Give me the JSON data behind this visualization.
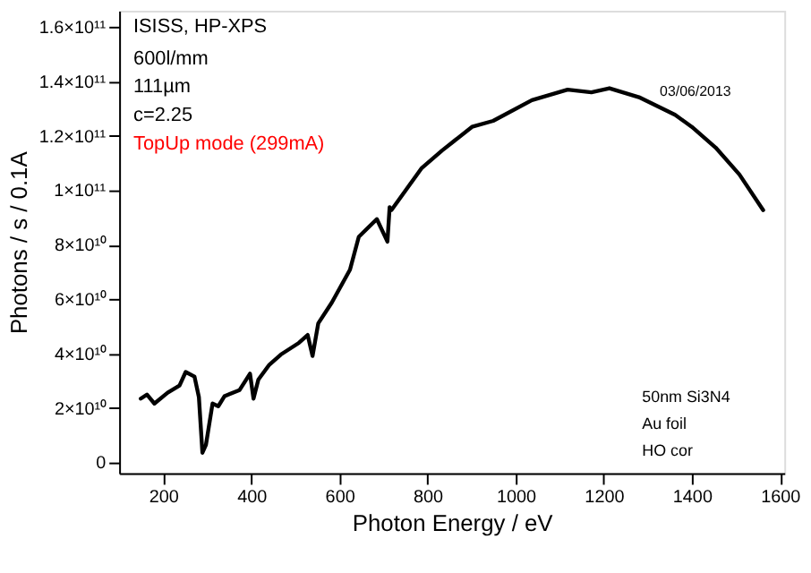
{
  "chart_data": {
    "type": "line",
    "xlabel": "Photon Energy / eV",
    "ylabel": "Photons / s / 0.1A",
    "x": [
      149,
      163,
      180,
      210,
      237,
      251,
      271,
      281,
      289,
      297,
      312,
      325,
      339,
      373,
      397,
      405,
      416,
      441,
      467,
      508,
      528,
      539,
      552,
      583,
      624,
      644,
      685,
      709,
      714,
      718,
      752,
      786,
      833,
      901,
      949,
      1037,
      1118,
      1172,
      1213,
      1280,
      1362,
      1400,
      1454,
      1508,
      1562
    ],
    "series": [
      {
        "color": "#000000",
        "values": [
          23400000000.0,
          24900000000.0,
          21600000000.0,
          25600000000.0,
          28200000000.0,
          33200000000.0,
          31500000000.0,
          24000000000.0,
          3500000000.0,
          6400000000.0,
          21600000000.0,
          20600000000.0,
          24300000000.0,
          26500000000.0,
          32600000000.0,
          23400000000.0,
          30400000000.0,
          35900000000.0,
          39600000000.0,
          43900000000.0,
          46800000000.0,
          39100000000.0,
          51100000000.0,
          58800000000.0,
          70800000000.0,
          82900000000.0,
          89400000000.0,
          81100000000.0,
          93800000000.0,
          92700000000.0,
          100300000000.0,
          108000000000.0,
          114600000000.0,
          123300000000.0,
          125500000000.0,
          133100000000.0,
          137000000000.0,
          136000000000.0,
          137500000000.0,
          134200000000.0,
          127700000000.0,
          123300000000.0,
          115700000000.0,
          105800000000.0,
          92700000000.0
        ]
      }
    ],
    "xlim": [
      100,
      1610
    ],
    "xticks": [
      200,
      400,
      600,
      800,
      1000,
      1200,
      1400,
      1600
    ],
    "ylim": [
      -4000000000.0,
      166000000000.0
    ],
    "yticks": [
      0,
      {
        "value": 20000000000.0,
        "label": "2×10¹⁰"
      },
      {
        "value": 40000000000.0,
        "label": "4×10¹⁰"
      },
      {
        "value": 60000000000.0,
        "label": "6×10¹⁰"
      },
      {
        "value": 80000000000.0,
        "label": "8×10¹⁰"
      },
      {
        "value": 100000000000.0,
        "label": "1×10¹¹"
      },
      {
        "value": 120000000000.0,
        "label": "1.2×10¹¹"
      },
      {
        "value": 140000000000.0,
        "label": "1.4×10¹¹"
      },
      {
        "value": 160000000000.0,
        "label": "1.6×10¹¹"
      }
    ],
    "annotations": [
      "ISISS, HP-XPS",
      "600l/mm",
      "111µm",
      "c=2.25",
      "TopUp mode (299mA)",
      "03/06/2013",
      "50nm Si3N4",
      "Au foil",
      "HO cor"
    ],
    "grid": false,
    "legend": false,
    "marker": "none",
    "line_style": "solid"
  }
}
